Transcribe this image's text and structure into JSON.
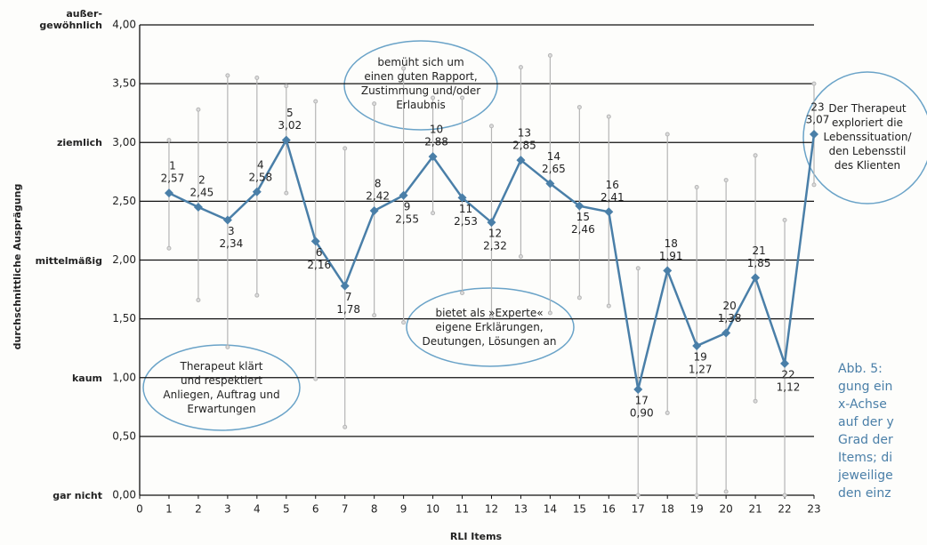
{
  "chart_data": {
    "type": "line",
    "x_label": "RLI Items",
    "y_label": "durchschnittliche Ausprägung",
    "x": [
      1,
      2,
      3,
      4,
      5,
      6,
      7,
      8,
      9,
      10,
      11,
      12,
      13,
      14,
      15,
      16,
      17,
      18,
      19,
      20,
      21,
      22,
      23
    ],
    "values": [
      2.57,
      2.45,
      2.34,
      2.58,
      3.02,
      2.16,
      1.78,
      2.42,
      2.55,
      2.88,
      2.53,
      2.32,
      2.85,
      2.65,
      2.46,
      2.41,
      0.9,
      1.91,
      1.27,
      1.38,
      1.85,
      1.12,
      3.07
    ],
    "value_labels": [
      "2,57",
      "2,45",
      "2,34",
      "2,58",
      "3,02",
      "2,16",
      "1,78",
      "2,42",
      "2,55",
      "2,88",
      "2,53",
      "2,32",
      "2,85",
      "2,65",
      "2,46",
      "2,41",
      "0,90",
      "1,91",
      "1,27",
      "1,38",
      "1,85",
      "1,12",
      "3,07"
    ],
    "low": [
      2.1,
      1.66,
      1.26,
      1.7,
      2.57,
      0.99,
      0.58,
      1.53,
      1.47,
      2.4,
      1.72,
      1.52,
      2.03,
      1.55,
      1.68,
      1.61,
      0.0,
      0.7,
      0.0,
      0.03,
      0.8,
      0.0,
      2.64
    ],
    "high": [
      3.02,
      3.28,
      3.57,
      3.55,
      3.48,
      3.35,
      2.95,
      3.33,
      3.63,
      3.38,
      3.38,
      3.14,
      3.64,
      3.74,
      3.3,
      3.22,
      1.93,
      3.07,
      2.62,
      2.68,
      2.89,
      2.34,
      3.5
    ],
    "color": "#4a7fa8",
    "range_color": "#b5b5b5",
    "xlim": [
      0,
      23
    ],
    "xticks": [
      0,
      1,
      2,
      3,
      4,
      5,
      6,
      7,
      8,
      9,
      10,
      11,
      12,
      13,
      14,
      15,
      16,
      17,
      18,
      19,
      20,
      21,
      22,
      23
    ],
    "ylim": [
      0,
      4
    ],
    "yticks": [
      {
        "value": 0,
        "label": "0,00"
      },
      {
        "value": 0.5,
        "label": "0,50"
      },
      {
        "value": 1,
        "label": "1,00"
      },
      {
        "value": 1.5,
        "label": "1,50"
      },
      {
        "value": 2,
        "label": "2,00"
      },
      {
        "value": 2.5,
        "label": "2,50"
      },
      {
        "value": 3,
        "label": "3,00"
      },
      {
        "value": 3.5,
        "label": "3,50"
      },
      {
        "value": 4,
        "label": "4,00"
      }
    ],
    "y_level_labels": [
      {
        "value": 4,
        "label": "außer-\ngewöhnlich"
      },
      {
        "value": 3,
        "label": "ziemlich"
      },
      {
        "value": 2,
        "label": "mittelmäßig"
      },
      {
        "value": 1,
        "label": "kaum"
      },
      {
        "value": 0,
        "label": "gar nicht"
      }
    ],
    "grid": true,
    "annotations": [
      "bemüht sich um\neinen guten Rapport,\nZustimmung und/oder\nErlaubnis",
      "Der Therapeut\nexploriert die\nLebenssituation/\nden Lebensstil\ndes Klienten",
      "bietet als »Experte«\neigene Erklärungen,\nDeutungen, Lösungen an",
      "Therapeut klärt\nund respektiert\nAnliegen, Auftrag und\nErwartungen"
    ],
    "caption": "Abb. 5:\ngung ein\nx-Achse\nauf der y\nGrad der\nItems; di\njeweilige\nden einz"
  }
}
